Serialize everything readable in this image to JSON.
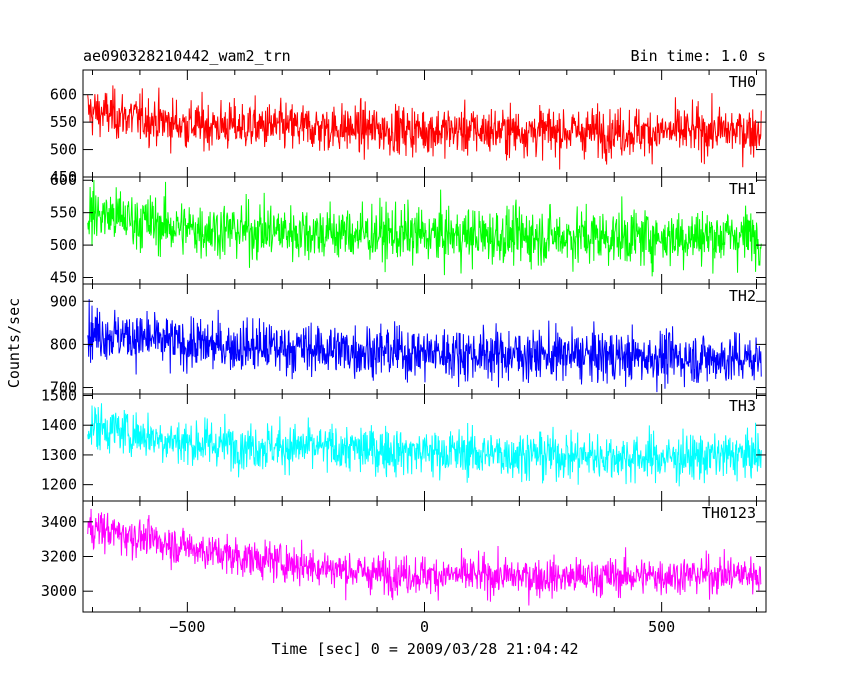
{
  "header": {
    "title": "ae090328210442_wam2_trn",
    "bin_time": "Bin time: 1.0 s"
  },
  "axes": {
    "xlabel": "Time [sec] 0 = 2009/03/28 21:04:42",
    "ylabel": "Counts/sec"
  },
  "chart_data": {
    "type": "line",
    "title": "ae090328210442_wam2_trn",
    "subtitle": "Bin time: 1.0 s",
    "xlabel": "Time [sec] 0 = 2009/03/28 21:04:42",
    "ylabel": "Counts/sec",
    "xlim": [
      -720,
      720
    ],
    "xticks": [
      -500,
      0,
      500
    ],
    "grid": false,
    "x": {
      "start": -710,
      "end": 710,
      "step": 1
    },
    "panels": [
      {
        "name": "TH0",
        "color": "#ff0000",
        "ylim": [
          450,
          645
        ],
        "yticks": [
          450,
          500,
          550,
          600
        ],
        "trend": [
          [
            -710,
            570
          ],
          [
            -500,
            545
          ],
          [
            0,
            535
          ],
          [
            500,
            532
          ],
          [
            710,
            535
          ]
        ],
        "noise": 22
      },
      {
        "name": "TH1",
        "color": "#00ff00",
        "ylim": [
          440,
          605
        ],
        "yticks": [
          450,
          500,
          550,
          600
        ],
        "trend": [
          [
            -710,
            550
          ],
          [
            -500,
            525
          ],
          [
            0,
            515
          ],
          [
            500,
            512
          ],
          [
            710,
            515
          ]
        ],
        "noise": 22
      },
      {
        "name": "TH2",
        "color": "#0000ff",
        "ylim": [
          685,
          940
        ],
        "yticks": [
          700,
          800,
          900
        ],
        "trend": [
          [
            -710,
            830
          ],
          [
            -500,
            800
          ],
          [
            0,
            780
          ],
          [
            500,
            770
          ],
          [
            710,
            765
          ]
        ],
        "noise": 30
      },
      {
        "name": "TH3",
        "color": "#00ffff",
        "ylim": [
          1145,
          1505
        ],
        "yticks": [
          1200,
          1300,
          1400,
          1500
        ],
        "trend": [
          [
            -710,
            1400
          ],
          [
            -500,
            1340
          ],
          [
            0,
            1310
          ],
          [
            500,
            1290
          ],
          [
            710,
            1300
          ]
        ],
        "noise": 40
      },
      {
        "name": "TH0123",
        "color": "#ff00ff",
        "ylim": [
          2880,
          3520
        ],
        "yticks": [
          3000,
          3200,
          3400
        ],
        "trend": [
          [
            -710,
            3370
          ],
          [
            -400,
            3200
          ],
          [
            -100,
            3100
          ],
          [
            300,
            3080
          ],
          [
            710,
            3100
          ]
        ],
        "noise": 55
      }
    ]
  }
}
